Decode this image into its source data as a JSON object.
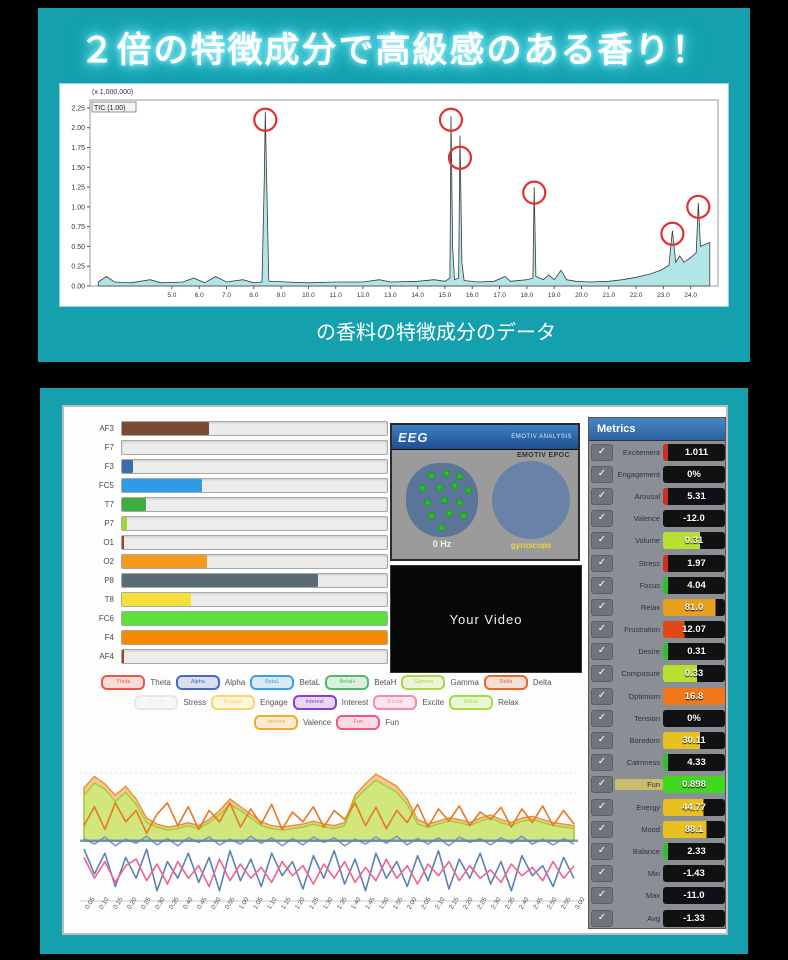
{
  "banner": {
    "title": "２倍の特徴成分で高級感のある香り！",
    "caption": "の香料の特徴成分のデータ",
    "bg_color": "#14a0ad"
  },
  "video": {
    "label": "Your Video"
  },
  "eeg_widget": {
    "logo": "EEG",
    "header_text": "EMOTIV ANALYSIS",
    "device_text": "EMOTIV EPOC",
    "left_caption": "0 Hz",
    "right_caption": "gyroscope",
    "head_dots": [
      [
        30,
        12
      ],
      [
        52,
        10
      ],
      [
        70,
        14
      ],
      [
        18,
        30
      ],
      [
        42,
        28
      ],
      [
        62,
        26
      ],
      [
        82,
        32
      ],
      [
        25,
        48
      ],
      [
        48,
        46
      ],
      [
        70,
        48
      ],
      [
        30,
        66
      ],
      [
        55,
        64
      ],
      [
        75,
        66
      ],
      [
        45,
        82
      ]
    ]
  },
  "metrics_panel": {
    "header": "Metrics",
    "rows": [
      {
        "label": "Excitement",
        "value": "1.011",
        "style": "redbar"
      },
      {
        "label": "Engagement",
        "value": "0%",
        "style": "plain"
      },
      {
        "label": "Arousal",
        "value": "5.31",
        "style": "redbar"
      },
      {
        "label": "Valence",
        "value": "-12.0",
        "style": "plain"
      },
      {
        "label": "Volume",
        "value": "0.31",
        "style": "partial",
        "color": "#b8e030",
        "frac": 60
      },
      {
        "label": "Stress",
        "value": "1.97",
        "style": "redbar"
      },
      {
        "label": "Focus",
        "value": "4.04",
        "style": "greenbar"
      },
      {
        "label": "Relax",
        "value": "81.0",
        "style": "partial",
        "color": "#e8a020",
        "frac": 85
      },
      {
        "label": "Frustration",
        "value": "12.07",
        "style": "partial",
        "color": "#e04818",
        "frac": 35
      },
      {
        "label": "Desire",
        "value": "0.31",
        "style": "greenbar"
      },
      {
        "label": "Composure",
        "value": "0.33",
        "style": "partial",
        "color": "#b8e030",
        "frac": 55
      },
      {
        "label": "Optimism",
        "value": "16.8",
        "style": "partial",
        "color": "#f07818",
        "frac": 100
      },
      {
        "label": "Tension",
        "value": "0%",
        "style": "plain"
      },
      {
        "label": "Boredom",
        "value": "30.11",
        "style": "partial",
        "color": "#e8c020",
        "frac": 60
      },
      {
        "label": "Calmness",
        "value": "4.33",
        "style": "greenbar"
      },
      {
        "label": "Fun",
        "value": "0.898",
        "style": "partial",
        "color": "#40d820",
        "frac": 100,
        "label_hl": true
      },
      {
        "label": "Energy",
        "value": "44.77",
        "style": "partial",
        "color": "#e8c020",
        "frac": 65
      },
      {
        "label": "Mood",
        "value": "88.1",
        "style": "partial",
        "color": "#e8c020",
        "frac": 70
      },
      {
        "label": "Balance",
        "value": "2.33",
        "style": "greenbar"
      },
      {
        "label": "Min",
        "value": "-1.43",
        "style": "plain"
      },
      {
        "label": "Max",
        "value": "-11.0",
        "style": "plain"
      },
      {
        "label": "Avg",
        "value": "-1.33",
        "style": "plain"
      }
    ]
  },
  "chart_data": [
    {
      "type": "area",
      "name": "chromatogram",
      "title": "",
      "unit_label": "(x 1,000,000)",
      "trace_label": "TIC (1.00)",
      "xlim": [
        2,
        25
      ],
      "ylim": [
        0,
        2.35
      ],
      "y_ticks": [
        "2.25",
        "2.00",
        "1.75",
        "1.50",
        "1.25",
        "1.00",
        "0.75",
        "0.50",
        "0.25",
        "0.00"
      ],
      "x_ticks": [
        "5.0",
        "6.0",
        "7.0",
        "8.0",
        "9.0",
        "10.0",
        "11.0",
        "12.0",
        "13.0",
        "14.0",
        "15.0",
        "16.0",
        "17.0",
        "18.0",
        "19.0",
        "20.0",
        "21.0",
        "22.0",
        "23.0",
        "24.0"
      ],
      "fill_color": "#b2e4e8",
      "line_color": "#3a3a3a",
      "circle_color": "#e03030",
      "points": [
        [
          2.3,
          0.05
        ],
        [
          2.6,
          0.12
        ],
        [
          2.9,
          0.05
        ],
        [
          3.5,
          0.04
        ],
        [
          4.2,
          0.08
        ],
        [
          4.6,
          0.04
        ],
        [
          5.4,
          0.05
        ],
        [
          5.8,
          0.1
        ],
        [
          6.2,
          0.04
        ],
        [
          6.6,
          0.12
        ],
        [
          7.0,
          0.05
        ],
        [
          7.6,
          0.08
        ],
        [
          8.0,
          0.04
        ],
        [
          8.3,
          0.05
        ],
        [
          8.38,
          1.3
        ],
        [
          8.42,
          2.2
        ],
        [
          8.48,
          1.2
        ],
        [
          8.55,
          0.06
        ],
        [
          9.2,
          0.05
        ],
        [
          10,
          0.04
        ],
        [
          11,
          0.05
        ],
        [
          12,
          0.05
        ],
        [
          12.6,
          0.08
        ],
        [
          13,
          0.05
        ],
        [
          14,
          0.06
        ],
        [
          14.6,
          0.08
        ],
        [
          15.0,
          0.06
        ],
        [
          15.18,
          0.1
        ],
        [
          15.22,
          2.15
        ],
        [
          15.28,
          0.5
        ],
        [
          15.35,
          0.08
        ],
        [
          15.5,
          0.1
        ],
        [
          15.55,
          1.9
        ],
        [
          15.62,
          0.3
        ],
        [
          15.7,
          0.07
        ],
        [
          16.2,
          0.05
        ],
        [
          16.8,
          0.06
        ],
        [
          17.2,
          0.12
        ],
        [
          17.4,
          0.06
        ],
        [
          18.0,
          0.08
        ],
        [
          18.22,
          0.1
        ],
        [
          18.27,
          1.25
        ],
        [
          18.33,
          0.12
        ],
        [
          18.6,
          0.08
        ],
        [
          18.8,
          0.14
        ],
        [
          19.0,
          0.08
        ],
        [
          19.25,
          0.2
        ],
        [
          19.45,
          0.08
        ],
        [
          19.8,
          0.06
        ],
        [
          20.3,
          0.05
        ],
        [
          21.0,
          0.06
        ],
        [
          21.5,
          0.08
        ],
        [
          22.0,
          0.11
        ],
        [
          22.5,
          0.15
        ],
        [
          22.9,
          0.2
        ],
        [
          23.2,
          0.26
        ],
        [
          23.33,
          0.7
        ],
        [
          23.45,
          0.3
        ],
        [
          23.6,
          0.38
        ],
        [
          23.75,
          0.3
        ],
        [
          24.0,
          0.36
        ],
        [
          24.2,
          0.42
        ],
        [
          24.28,
          1.05
        ],
        [
          24.36,
          0.5
        ],
        [
          24.5,
          0.52
        ],
        [
          24.7,
          0.55
        ]
      ],
      "highlight_circles": [
        [
          8.42,
          2.1
        ],
        [
          15.22,
          2.1
        ],
        [
          15.55,
          1.62
        ],
        [
          18.27,
          1.18
        ],
        [
          23.33,
          0.66
        ],
        [
          24.28,
          1.0
        ]
      ]
    },
    {
      "type": "bar",
      "name": "eeg-channel-quality",
      "orientation": "horizontal",
      "categories": [
        "AF3",
        "F7",
        "F3",
        "FC5",
        "T7",
        "P7",
        "O1",
        "O2",
        "P8",
        "T8",
        "FC6",
        "F4",
        "AF4"
      ],
      "values": [
        33,
        0,
        4,
        30,
        9,
        2,
        0,
        32,
        74,
        26,
        100,
        100,
        0
      ],
      "colors": [
        "#7a4a32",
        "#ececec",
        "#3a6ea8",
        "#2e9be6",
        "#3fae3f",
        "#9ed633",
        "#ececec",
        "#f59a1c",
        "#5a6b78",
        "#f5e03a",
        "#5ce03a",
        "#f58a00",
        "#ececec"
      ],
      "textured": [
        false,
        false,
        false,
        false,
        true,
        false,
        false,
        false,
        false,
        false,
        false,
        false,
        false
      ],
      "left_tick": [
        false,
        false,
        false,
        false,
        false,
        false,
        true,
        false,
        false,
        false,
        false,
        false,
        true
      ],
      "xlim": [
        0,
        100
      ]
    },
    {
      "type": "line",
      "name": "metrics-timeline",
      "baseline": "zero-centered",
      "ylim": [
        -70,
        100
      ],
      "grid": "dotted-top",
      "x_labels": [
        "0:05",
        "0:10",
        "0:15",
        "0:20",
        "0:25",
        "0:30",
        "0:35",
        "0:40",
        "0:45",
        "0:50",
        "0:55",
        "1:00",
        "1:05",
        "1:10",
        "1:15",
        "1:20",
        "1:25",
        "1:30",
        "1:35",
        "1:40",
        "1:45",
        "1:50",
        "1:55",
        "2:00",
        "2:05",
        "2:10",
        "2:15",
        "2:20",
        "2:25",
        "2:30",
        "2:35",
        "2:40",
        "2:45",
        "2:50",
        "2:55",
        "3:00"
      ],
      "legend_rows": [
        [
          {
            "label": "Theta",
            "color": "#e8574a"
          },
          {
            "label": "Alpha",
            "color": "#4a69c4"
          },
          {
            "label": "BetaL",
            "color": "#3f9ee8"
          },
          {
            "label": "BetaH",
            "color": "#55b86a"
          },
          {
            "label": "Gamma",
            "color": "#a8d84a"
          },
          {
            "label": "Delta",
            "color": "#e8692e"
          }
        ],
        [
          {
            "label": "Stress",
            "color": "#e8e8e8"
          },
          {
            "label": "Engage",
            "color": "#f5d866"
          },
          {
            "label": "Interest",
            "color": "#8a3fd0"
          },
          {
            "label": "Excite",
            "color": "#f48ab0"
          },
          {
            "label": "Relax",
            "color": "#9fe03a"
          }
        ],
        [
          {
            "label": "Valence",
            "color": "#f5a92e"
          },
          {
            "label": "Fun",
            "color": "#ef5a82"
          }
        ]
      ],
      "series": [
        {
          "name": "orange-area",
          "kind": "area",
          "color": "#e8912e",
          "fill": "#f5c08a",
          "values": [
            70,
            85,
            75,
            60,
            72,
            55,
            30,
            22,
            18,
            20,
            24,
            20,
            28,
            40,
            55,
            45,
            35,
            25,
            20,
            18,
            20,
            22,
            26,
            22,
            20,
            24,
            60,
            75,
            88,
            80,
            72,
            55,
            28,
            22,
            26,
            30,
            28,
            24,
            30,
            34,
            28,
            24,
            30,
            32,
            28,
            24,
            22,
            20
          ]
        },
        {
          "name": "green-area",
          "kind": "area",
          "color": "#9ccf30",
          "fill": "#cdea7a",
          "values": [
            60,
            76,
            68,
            52,
            64,
            48,
            24,
            18,
            14,
            16,
            20,
            16,
            24,
            34,
            48,
            40,
            30,
            20,
            16,
            14,
            16,
            18,
            22,
            18,
            16,
            20,
            54,
            68,
            80,
            72,
            64,
            48,
            22,
            18,
            22,
            26,
            24,
            20,
            26,
            30,
            24,
            20,
            26,
            28,
            24,
            20,
            18,
            16
          ]
        },
        {
          "name": "orange-spikes",
          "kind": "line",
          "color": "#e87820",
          "values": [
            20,
            45,
            15,
            50,
            25,
            40,
            10,
            35,
            50,
            20,
            45,
            15,
            40,
            25,
            50,
            18,
            42,
            22,
            48,
            15,
            38,
            25,
            45,
            18,
            40,
            28,
            50,
            20,
            44,
            16,
            40,
            24,
            48,
            18,
            42,
            26,
            46,
            20,
            38,
            28,
            44,
            18,
            42,
            24,
            46,
            20,
            40,
            22
          ]
        },
        {
          "name": "steel-spikes",
          "kind": "line",
          "color": "#5b82b0",
          "values": [
            -10,
            -40,
            -15,
            -55,
            -20,
            -45,
            -10,
            -60,
            -25,
            -45,
            -15,
            -50,
            -20,
            -60,
            -12,
            -48,
            -22,
            -55,
            -15,
            -42,
            -25,
            -58,
            -18,
            -45,
            -12,
            -52,
            -22,
            -60,
            -15,
            -45,
            -25,
            -55,
            -18,
            -48,
            -12,
            -58,
            -22,
            -45,
            -15,
            -52,
            -25,
            -60,
            -18,
            -42,
            -30,
            -55,
            -20,
            -45
          ]
        },
        {
          "name": "pink-line",
          "kind": "line",
          "color": "#f06292",
          "values": [
            -20,
            -45,
            -25,
            -50,
            -30,
            -22,
            -48,
            -28,
            -52,
            -25,
            -45,
            -30,
            -55,
            -22,
            -48,
            -28,
            -45,
            -32,
            -50,
            -25,
            -42,
            -30,
            -52,
            -28,
            -45,
            -25,
            -50,
            -32,
            -48,
            -22,
            -45,
            -30,
            -52,
            -28,
            -42,
            -25,
            -48,
            -30,
            -45,
            -35,
            -50,
            -28,
            -42,
            -32,
            -48,
            -25,
            -45,
            -30
          ]
        },
        {
          "name": "blue-mid",
          "kind": "line",
          "color": "#7a9ac8",
          "values": [
            3,
            -4,
            5,
            -6,
            2,
            -3,
            6,
            -5,
            3,
            -6,
            4,
            -2,
            5,
            -5,
            2,
            -4,
            6,
            -3,
            4,
            -6,
            3,
            -5,
            5,
            -2,
            4,
            -6,
            2,
            -4,
            5,
            -3,
            6,
            -5,
            3,
            -4,
            4,
            -6,
            5,
            -2,
            3,
            -5,
            4,
            -3,
            6,
            -4,
            2,
            -5,
            3,
            -4
          ]
        }
      ]
    }
  ]
}
